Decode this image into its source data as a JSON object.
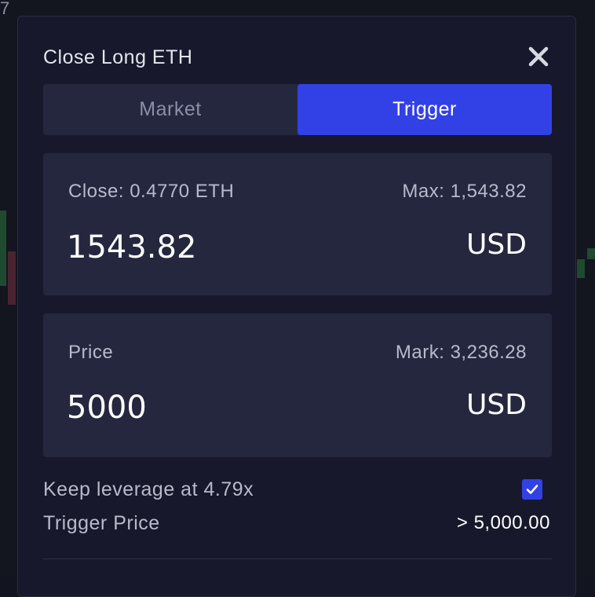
{
  "background": {
    "corner_glyph": "7"
  },
  "modal": {
    "title": "Close Long ETH",
    "close_icon": "close-icon",
    "tabs": [
      {
        "label": "Market",
        "active": false
      },
      {
        "label": "Trigger",
        "active": true
      }
    ],
    "close_card": {
      "label": "Close: 0.4770 ETH",
      "max_label": "Max: 1,543.82",
      "value": "1543.82",
      "unit": "USD"
    },
    "price_card": {
      "label": "Price",
      "mark_label": "Mark: 3,236.28",
      "value": "5000",
      "unit": "USD"
    },
    "keep_leverage": {
      "label": "Keep leverage at 4.79x",
      "checked": true
    },
    "trigger_price": {
      "label": "Trigger Price",
      "value": "> 5,000.00"
    }
  },
  "colors": {
    "accent": "#3241e6",
    "modal_bg": "#17182b",
    "card_bg": "#25273f",
    "text_muted": "#b8bacb",
    "text_primary": "#ffffff"
  }
}
